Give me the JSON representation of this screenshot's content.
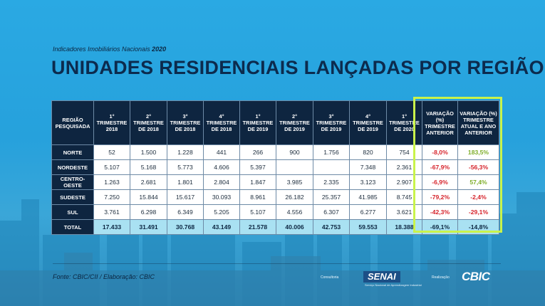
{
  "header": {
    "subtitle_prefix": "Indicadores Imobiliários Nacionais",
    "subtitle_year": "2020",
    "title": "UNIDADES RESIDENCIAIS LANÇADAS POR REGIÃO"
  },
  "table": {
    "columns": [
      "REGIÃO PESQUISADA",
      "1° TRIMESTRE 2018",
      "2° TRIMESTRE DE 2018",
      "3° TRIMESTRE DE 2018",
      "4° TRIMESTRE DE 2018",
      "1° TRIMESTRE DE 2019",
      "2° TRIMESTRE DE 2019",
      "3° TRIMESTRE DE 2019",
      "4° TRIMESTRE DE 2019",
      "1° TRIMESTRE DE 2020",
      "VARIAÇÃO (%) TRIMESTRE ANTERIOR",
      "VARIAÇÃO (%) TRIMESTRE ATUAL E ANO ANTERIOR"
    ],
    "rows": [
      {
        "region": "NORTE",
        "values": [
          "52",
          "1.500",
          "1.228",
          "441",
          "266",
          "900",
          "1.756",
          "820",
          "754"
        ],
        "var_prev": "-8,0%",
        "var_prev_sign": "neg",
        "var_year": "183,5%",
        "var_year_sign": "pos"
      },
      {
        "region": "NORDESTE",
        "values": [
          "5.107",
          "5.168",
          "5.773",
          "4.606",
          "5.397",
          "",
          "",
          "7.348",
          "2.361"
        ],
        "var_prev": "-67,9%",
        "var_prev_sign": "neg",
        "var_year": "-56,3%",
        "var_year_sign": "neg"
      },
      {
        "region": "CENTRO-OESTE",
        "values": [
          "1.263",
          "2.681",
          "1.801",
          "2.804",
          "1.847",
          "3.985",
          "2.335",
          "3.123",
          "2.907"
        ],
        "var_prev": "-6,9%",
        "var_prev_sign": "neg",
        "var_year": "57,4%",
        "var_year_sign": "pos"
      },
      {
        "region": "SUDESTE",
        "values": [
          "7.250",
          "15.844",
          "15.617",
          "30.093",
          "8.961",
          "26.182",
          "25.357",
          "41.985",
          "8.745"
        ],
        "var_prev": "-79,2%",
        "var_prev_sign": "neg",
        "var_year": "-2,4%",
        "var_year_sign": "neg"
      },
      {
        "region": "SUL",
        "values": [
          "3.761",
          "6.298",
          "6.349",
          "5.205",
          "5.107",
          "4.556",
          "6.307",
          "6.277",
          "3.621"
        ],
        "var_prev": "-42,3%",
        "var_prev_sign": "neg",
        "var_year": "-29,1%",
        "var_year_sign": "neg"
      }
    ],
    "total": {
      "region": "TOTAL",
      "values": [
        "17.433",
        "31.491",
        "30.768",
        "43.149",
        "21.578",
        "40.006",
        "42.753",
        "59.553",
        "18.388"
      ],
      "var_prev": "-69,1%",
      "var_year": "-14,8%"
    },
    "highlight_color": "#c9f34b",
    "negative_color": "#d6232b",
    "positive_color": "#7fae2a"
  },
  "footer": {
    "source": "Fonte: CBIC/CII / Elaboração: CBIC",
    "consult_label": "Consultoria",
    "senai_logo": "SENAI",
    "senai_sub": "Serviço Nacional de Aprendizagem Industrial",
    "realiz_label": "Realização",
    "cbic_logo": "CBIC"
  }
}
